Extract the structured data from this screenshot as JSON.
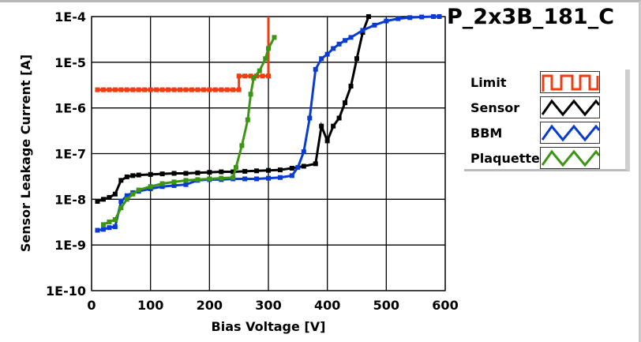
{
  "chart_data": {
    "type": "line",
    "title": "P_2x3B_181_C",
    "xlabel": "Bias Voltage [V]",
    "ylabel": "Sensor Leakage Current [A]",
    "xlim": [
      0,
      600
    ],
    "ylim": [
      1e-10,
      0.0001
    ],
    "yscale": "log",
    "grid": true,
    "legend_position": "right",
    "x_ticks": [
      "0",
      "100",
      "200",
      "300",
      "400",
      "500",
      "600"
    ],
    "y_ticks": [
      "1E-10",
      "1E-9",
      "1E-8",
      "1E-7",
      "1E-6",
      "1E-5",
      "1E-4"
    ],
    "series": [
      {
        "name": "Limit",
        "color": "#f03c10",
        "step": true,
        "x": [
          10,
          20,
          30,
          40,
          50,
          60,
          70,
          80,
          90,
          100,
          110,
          120,
          130,
          140,
          150,
          160,
          170,
          180,
          190,
          200,
          210,
          220,
          230,
          240,
          250,
          250,
          260,
          270,
          280,
          290,
          300,
          300
        ],
        "y": [
          2.5e-06,
          2.5e-06,
          2.5e-06,
          2.5e-06,
          2.5e-06,
          2.5e-06,
          2.5e-06,
          2.5e-06,
          2.5e-06,
          2.5e-06,
          2.5e-06,
          2.5e-06,
          2.5e-06,
          2.5e-06,
          2.5e-06,
          2.5e-06,
          2.5e-06,
          2.5e-06,
          2.5e-06,
          2.5e-06,
          2.5e-06,
          2.5e-06,
          2.5e-06,
          2.5e-06,
          2.5e-06,
          5e-06,
          5e-06,
          5e-06,
          5e-06,
          5e-06,
          5e-06,
          0.0001
        ]
      },
      {
        "name": "Sensor",
        "color": "#000000",
        "x": [
          10,
          20,
          30,
          40,
          50,
          60,
          70,
          80,
          100,
          120,
          140,
          160,
          180,
          200,
          220,
          240,
          260,
          280,
          300,
          320,
          340,
          360,
          380,
          390,
          400,
          410,
          420,
          430,
          440,
          450,
          460,
          470
        ],
        "y": [
          9e-09,
          1e-08,
          1.1e-08,
          1.3e-08,
          2.6e-08,
          3.1e-08,
          3.3e-08,
          3.4e-08,
          3.5e-08,
          3.6e-08,
          3.7e-08,
          3.7e-08,
          3.8e-08,
          3.9e-08,
          4e-08,
          4e-08,
          4.1e-08,
          4.2e-08,
          4.3e-08,
          4.4e-08,
          4.8e-08,
          5.3e-08,
          6e-08,
          4e-07,
          1.9e-07,
          4e-07,
          6e-07,
          1.3e-06,
          3e-06,
          1.2e-05,
          4.5e-05,
          0.0001
        ]
      },
      {
        "name": "BBM",
        "color": "#0a3cd2",
        "x": [
          10,
          20,
          30,
          40,
          50,
          60,
          70,
          80,
          100,
          120,
          140,
          160,
          180,
          200,
          220,
          240,
          260,
          280,
          300,
          320,
          340,
          350,
          360,
          370,
          380,
          390,
          400,
          410,
          420,
          430,
          440,
          460,
          480,
          500,
          520,
          540,
          560,
          580,
          590
        ],
        "y": [
          2.1e-09,
          2.2e-09,
          2.4e-09,
          2.5e-09,
          9e-09,
          1.2e-08,
          1.4e-08,
          1.5e-08,
          1.7e-08,
          1.9e-08,
          2e-08,
          2.1e-08,
          2.6e-08,
          2.7e-08,
          2.7e-08,
          2.8e-08,
          2.8e-08,
          2.8e-08,
          2.9e-08,
          3e-08,
          3.3e-08,
          5e-08,
          1.1e-07,
          6e-07,
          7e-06,
          1.2e-05,
          1.5e-05,
          2e-05,
          2.5e-05,
          3e-05,
          3.5e-05,
          5e-05,
          6.5e-05,
          8e-05,
          9e-05,
          9.5e-05,
          9.8e-05,
          0.0001,
          0.0001
        ]
      },
      {
        "name": "Plaquette",
        "color": "#3c9614",
        "x": [
          20,
          30,
          40,
          50,
          60,
          70,
          80,
          100,
          120,
          140,
          160,
          180,
          200,
          220,
          240,
          245,
          255,
          265,
          270,
          275,
          285,
          295,
          300,
          310
        ],
        "y": [
          2.8e-09,
          3.2e-09,
          3.6e-09,
          6.5e-09,
          1e-08,
          1.3e-08,
          1.6e-08,
          1.9e-08,
          2.2e-08,
          2.4e-08,
          2.6e-08,
          2.7e-08,
          2.8e-08,
          2.9e-08,
          3e-08,
          5e-08,
          1.5e-07,
          5.5e-07,
          2e-06,
          4.5e-06,
          6.5e-06,
          1.2e-05,
          2e-05,
          3.5e-05
        ]
      }
    ]
  }
}
